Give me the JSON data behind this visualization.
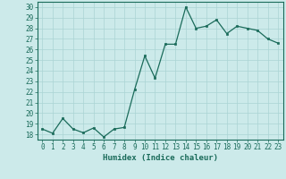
{
  "x": [
    0,
    1,
    2,
    3,
    4,
    5,
    6,
    7,
    8,
    9,
    10,
    11,
    12,
    13,
    14,
    15,
    16,
    17,
    18,
    19,
    20,
    21,
    22,
    23
  ],
  "y": [
    18.5,
    18.1,
    19.5,
    18.5,
    18.15,
    18.6,
    17.75,
    18.5,
    18.65,
    22.2,
    25.4,
    23.3,
    26.5,
    26.5,
    30.0,
    28.0,
    28.2,
    28.8,
    27.5,
    28.2,
    28.0,
    27.8,
    27.0,
    26.6
  ],
  "xlabel": "Humidex (Indice chaleur)",
  "ylim": [
    17.5,
    30.5
  ],
  "xlim": [
    -0.5,
    23.5
  ],
  "yticks": [
    18,
    19,
    20,
    21,
    22,
    23,
    24,
    25,
    26,
    27,
    28,
    29,
    30
  ],
  "xticks": [
    0,
    1,
    2,
    3,
    4,
    5,
    6,
    7,
    8,
    9,
    10,
    11,
    12,
    13,
    14,
    15,
    16,
    17,
    18,
    19,
    20,
    21,
    22,
    23
  ],
  "line_color": "#1a6b5a",
  "marker_color": "#1a6b5a",
  "bg_color": "#cceaea",
  "grid_color": "#aad4d4",
  "axis_color": "#1a6b5a",
  "tick_color": "#1a6b5a",
  "xlabel_color": "#1a6b5a",
  "label_fontsize": 6.5,
  "tick_fontsize": 5.5
}
